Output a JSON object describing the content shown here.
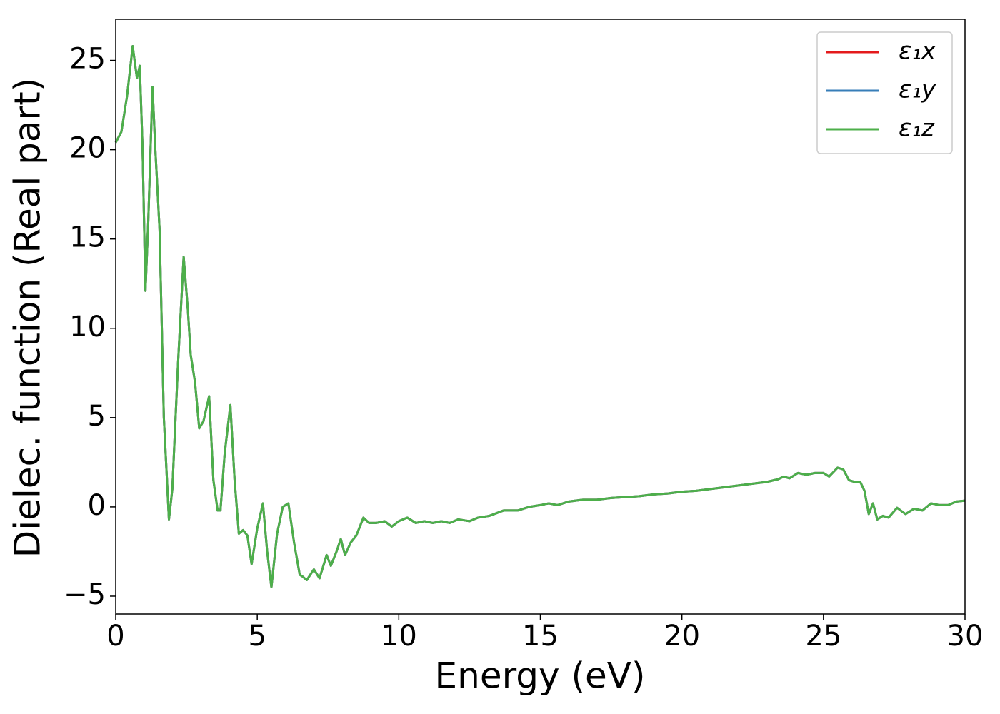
{
  "chart_data": {
    "type": "line",
    "xlabel": "Energy (eV)",
    "ylabel": "Dielec. function (Real part)",
    "x": [
      0,
      0.2,
      0.4,
      0.6,
      0.75,
      0.85,
      0.95,
      1.05,
      1.15,
      1.3,
      1.4,
      1.55,
      1.7,
      1.88,
      2.0,
      2.2,
      2.4,
      2.55,
      2.65,
      2.8,
      2.95,
      3.1,
      3.3,
      3.45,
      3.6,
      3.7,
      3.85,
      4.05,
      4.2,
      4.35,
      4.5,
      4.65,
      4.8,
      5.0,
      5.2,
      5.35,
      5.5,
      5.7,
      5.9,
      6.1,
      6.3,
      6.5,
      6.6,
      6.75,
      7.0,
      7.2,
      7.45,
      7.6,
      7.8,
      7.95,
      8.1,
      8.3,
      8.5,
      8.75,
      8.95,
      9.2,
      9.5,
      9.75,
      10.0,
      10.3,
      10.6,
      10.9,
      11.2,
      11.5,
      11.8,
      12.1,
      12.5,
      12.8,
      13.2,
      13.7,
      14.2,
      14.6,
      15,
      15.3,
      15.6,
      16,
      16.5,
      17,
      17.5,
      18,
      18.5,
      19,
      19.5,
      20,
      20.5,
      21,
      21.5,
      22,
      22.5,
      23,
      23.4,
      23.6,
      23.8,
      24.1,
      24.4,
      24.7,
      25.0,
      25.2,
      25.5,
      25.7,
      25.9,
      26.1,
      26.3,
      26.45,
      26.6,
      26.75,
      26.9,
      27.1,
      27.3,
      27.6,
      27.9,
      28.2,
      28.5,
      28.8,
      29.1,
      29.4,
      29.7,
      30
    ],
    "series": [
      {
        "name": "ε₁x",
        "color": "#e41a1c",
        "values": [
          20.4,
          21,
          23,
          25.8,
          24,
          24.7,
          20,
          12.1,
          16,
          23.5,
          20,
          15.5,
          5,
          -0.7,
          1,
          8,
          14,
          11,
          8.5,
          7,
          4.4,
          4.8,
          6.2,
          1.5,
          -0.2,
          -0.2,
          3,
          5.7,
          1.5,
          -1.5,
          -1.3,
          -1.6,
          -3.2,
          -1.2,
          0.2,
          -2.5,
          -4.5,
          -1.5,
          0,
          0.2,
          -2,
          -3.8,
          -3.9,
          -4.1,
          -3.5,
          -4.0,
          -2.7,
          -3.3,
          -2.5,
          -1.8,
          -2.7,
          -2,
          -1.6,
          -0.6,
          -0.9,
          -0.9,
          -0.8,
          -1.1,
          -0.8,
          -0.6,
          -0.9,
          -0.8,
          -0.9,
          -0.8,
          -0.9,
          -0.7,
          -0.8,
          -0.6,
          -0.5,
          -0.2,
          -0.2,
          0,
          0.1,
          0.2,
          0.1,
          0.3,
          0.4,
          0.4,
          0.5,
          0.55,
          0.6,
          0.7,
          0.75,
          0.85,
          0.9,
          1.0,
          1.1,
          1.2,
          1.3,
          1.4,
          1.55,
          1.7,
          1.6,
          1.9,
          1.8,
          1.9,
          1.9,
          1.7,
          2.2,
          2.1,
          1.5,
          1.4,
          1.4,
          0.9,
          -0.4,
          0.2,
          -0.7,
          -0.5,
          -0.6,
          -0.05,
          -0.4,
          -0.1,
          -0.2,
          0.2,
          0.1,
          0.1,
          0.3,
          0.35
        ]
      },
      {
        "name": "ε₁y",
        "color": "#377eb8",
        "values": [
          20.4,
          21,
          23,
          25.8,
          24,
          24.7,
          20,
          12.1,
          16,
          23.5,
          20,
          15.5,
          5,
          -0.7,
          1,
          8,
          14,
          11,
          8.5,
          7,
          4.4,
          4.8,
          6.2,
          1.5,
          -0.2,
          -0.2,
          3,
          5.7,
          1.5,
          -1.5,
          -1.3,
          -1.6,
          -3.2,
          -1.2,
          0.2,
          -2.5,
          -4.5,
          -1.5,
          0,
          0.2,
          -2,
          -3.8,
          -3.9,
          -4.1,
          -3.5,
          -4.0,
          -2.7,
          -3.3,
          -2.5,
          -1.8,
          -2.7,
          -2,
          -1.6,
          -0.6,
          -0.9,
          -0.9,
          -0.8,
          -1.1,
          -0.8,
          -0.6,
          -0.9,
          -0.8,
          -0.9,
          -0.8,
          -0.9,
          -0.7,
          -0.8,
          -0.6,
          -0.5,
          -0.2,
          -0.2,
          0,
          0.1,
          0.2,
          0.1,
          0.3,
          0.4,
          0.4,
          0.5,
          0.55,
          0.6,
          0.7,
          0.75,
          0.85,
          0.9,
          1.0,
          1.1,
          1.2,
          1.3,
          1.4,
          1.55,
          1.7,
          1.6,
          1.9,
          1.8,
          1.9,
          1.9,
          1.7,
          2.2,
          2.1,
          1.5,
          1.4,
          1.4,
          0.9,
          -0.4,
          0.2,
          -0.7,
          -0.5,
          -0.6,
          -0.05,
          -0.4,
          -0.1,
          -0.2,
          0.2,
          0.1,
          0.1,
          0.3,
          0.35
        ]
      },
      {
        "name": "ε₁z",
        "color": "#4daf4a",
        "values": [
          20.4,
          21,
          23,
          25.8,
          24,
          24.7,
          20,
          12.1,
          16,
          23.5,
          20,
          15.5,
          5,
          -0.7,
          1,
          8,
          14,
          11,
          8.5,
          7,
          4.4,
          4.8,
          6.2,
          1.5,
          -0.2,
          -0.2,
          3,
          5.7,
          1.5,
          -1.5,
          -1.3,
          -1.6,
          -3.2,
          -1.2,
          0.2,
          -2.5,
          -4.5,
          -1.5,
          0,
          0.2,
          -2,
          -3.8,
          -3.9,
          -4.1,
          -3.5,
          -4.0,
          -2.7,
          -3.3,
          -2.5,
          -1.8,
          -2.7,
          -2,
          -1.6,
          -0.6,
          -0.9,
          -0.9,
          -0.8,
          -1.1,
          -0.8,
          -0.6,
          -0.9,
          -0.8,
          -0.9,
          -0.8,
          -0.9,
          -0.7,
          -0.8,
          -0.6,
          -0.5,
          -0.2,
          -0.2,
          0,
          0.1,
          0.2,
          0.1,
          0.3,
          0.4,
          0.4,
          0.5,
          0.55,
          0.6,
          0.7,
          0.75,
          0.85,
          0.9,
          1.0,
          1.1,
          1.2,
          1.3,
          1.4,
          1.55,
          1.7,
          1.6,
          1.9,
          1.8,
          1.9,
          1.9,
          1.7,
          2.2,
          2.1,
          1.5,
          1.4,
          1.4,
          0.9,
          -0.4,
          0.2,
          -0.7,
          -0.5,
          -0.6,
          -0.05,
          -0.4,
          -0.1,
          -0.2,
          0.2,
          0.1,
          0.1,
          0.3,
          0.35
        ]
      }
    ],
    "xlim": [
      0,
      30
    ],
    "xticks": [
      0,
      5,
      10,
      15,
      20,
      25,
      30
    ],
    "ylim": [
      -6,
      27.3
    ],
    "yticks": [
      {
        "value": -5,
        "label": "−5"
      },
      0,
      5,
      10,
      15,
      20,
      25
    ],
    "grid": false,
    "legend": "upper right"
  }
}
